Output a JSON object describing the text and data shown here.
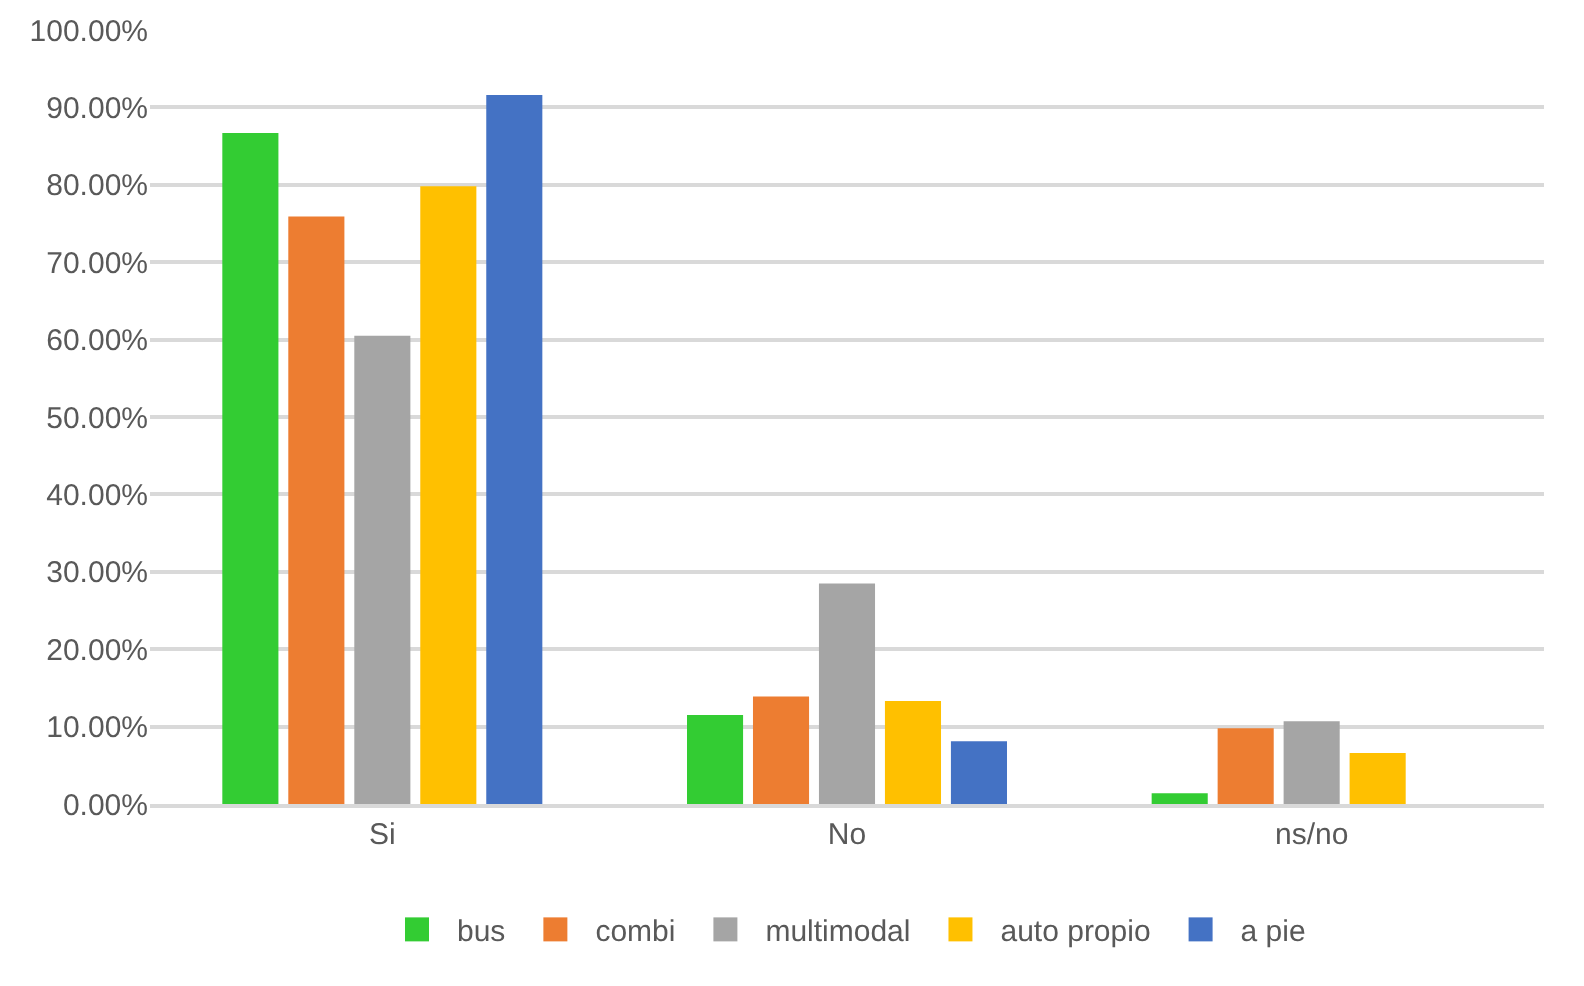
{
  "chart_data": {
    "type": "bar",
    "categories": [
      "Si",
      "No",
      "ns/no"
    ],
    "series": [
      {
        "name": "bus",
        "color": "#33cc33",
        "values": [
          86.7,
          11.5,
          1.4
        ]
      },
      {
        "name": "combi",
        "color": "#ed7d31",
        "values": [
          75.9,
          13.9,
          9.8
        ]
      },
      {
        "name": "multimodal",
        "color": "#a5a5a5",
        "values": [
          60.5,
          28.5,
          10.7
        ]
      },
      {
        "name": "auto propio",
        "color": "#ffc000",
        "values": [
          79.8,
          13.3,
          6.6
        ]
      },
      {
        "name": "a pie",
        "color": "#4472c4",
        "values": [
          91.6,
          8.1,
          null
        ]
      }
    ],
    "ylim": [
      0,
      100
    ],
    "yticks": [
      {
        "value": 0,
        "label": "0.00%"
      },
      {
        "value": 10,
        "label": "10.00%"
      },
      {
        "value": 20,
        "label": "20.00%"
      },
      {
        "value": 30,
        "label": "30.00%"
      },
      {
        "value": 40,
        "label": "40.00%"
      },
      {
        "value": 50,
        "label": "50.00%"
      },
      {
        "value": 60,
        "label": "60.00%"
      },
      {
        "value": 70,
        "label": "70.00%"
      },
      {
        "value": 80,
        "label": "80.00%"
      },
      {
        "value": 90,
        "label": "90.00%"
      },
      {
        "value": 100,
        "label": "100.00%"
      }
    ],
    "grid": "y",
    "legend": "bottom"
  }
}
